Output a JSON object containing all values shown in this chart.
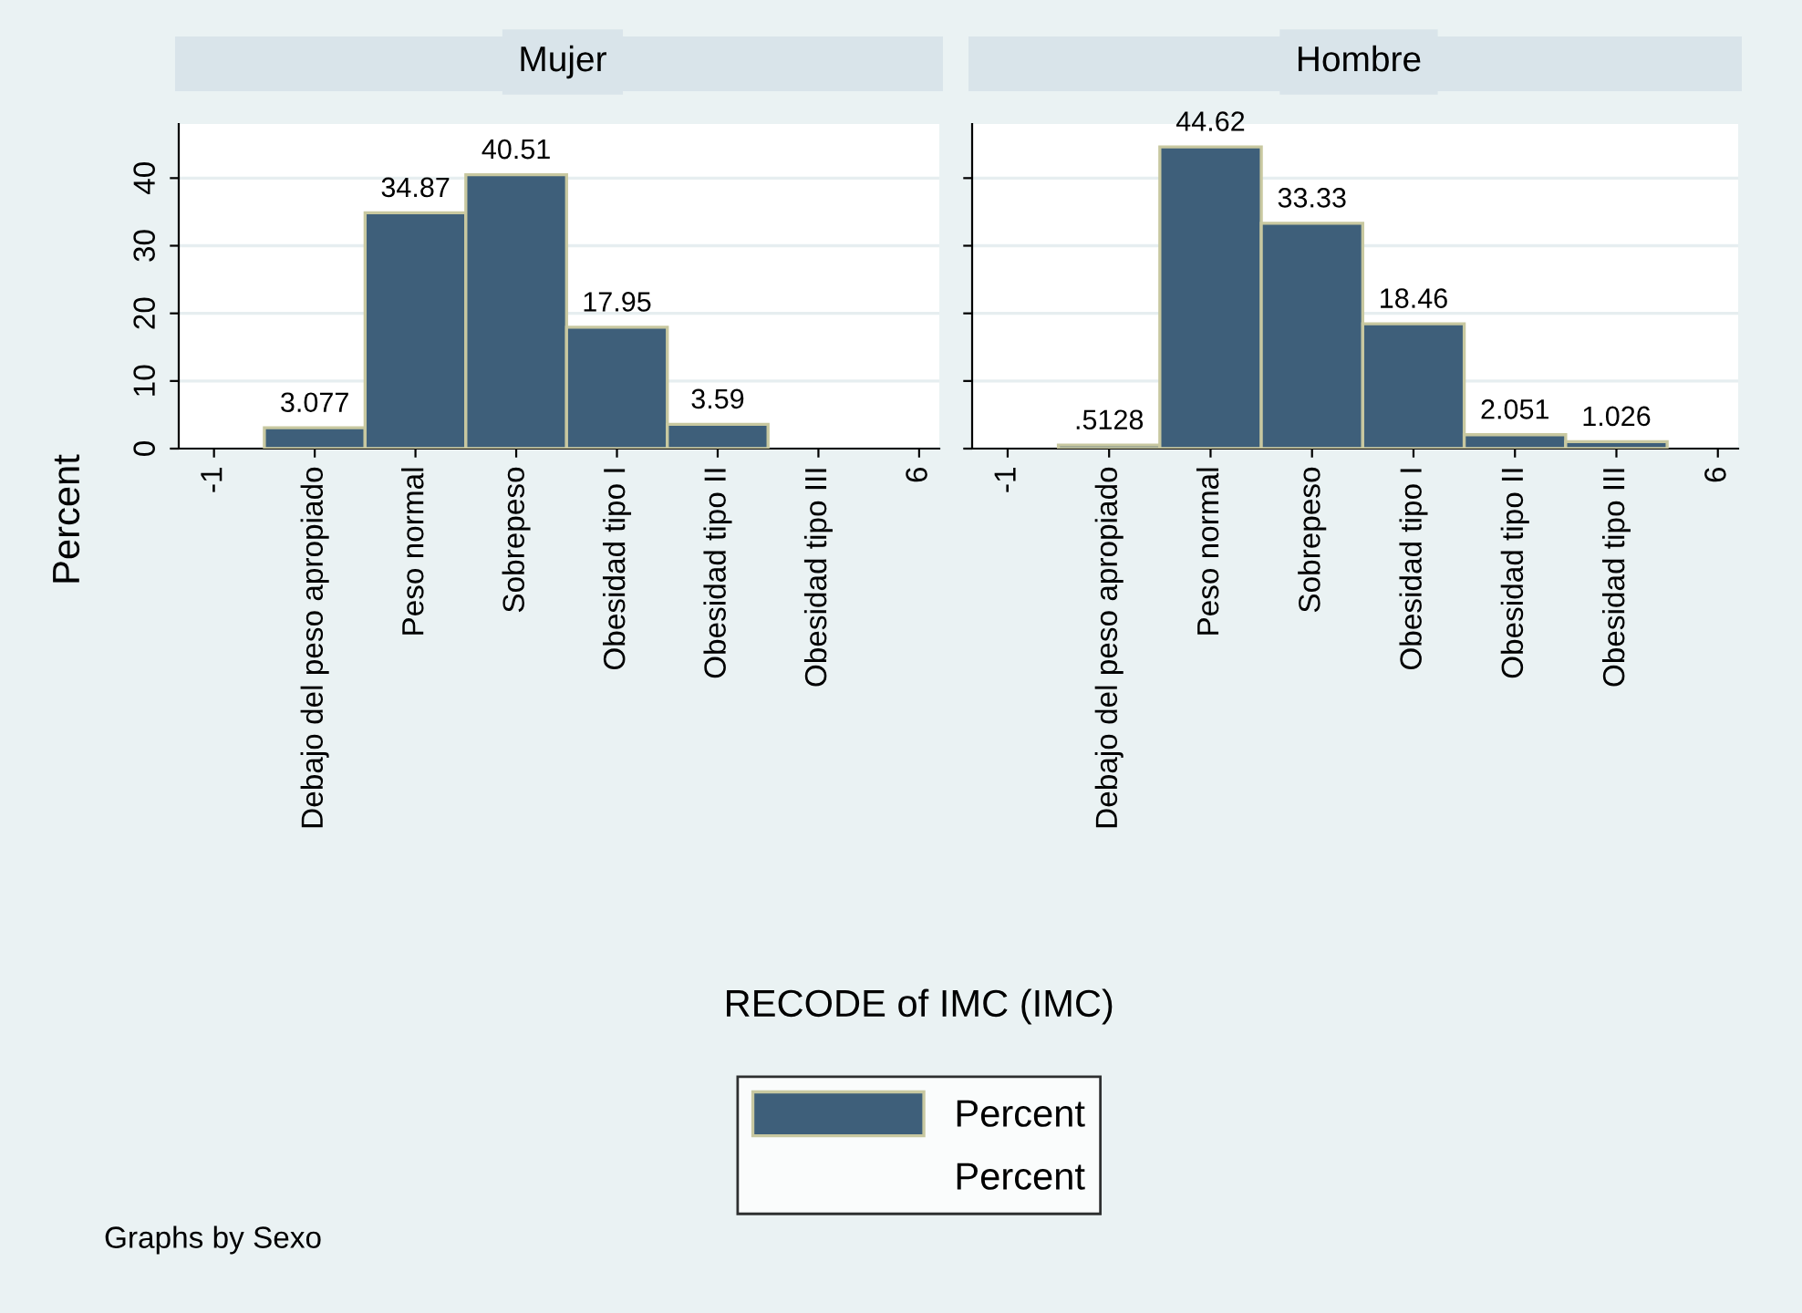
{
  "chart_data": [
    {
      "type": "histogram",
      "title": "Mujer",
      "ylabel": "Percent",
      "xlabel": "RECODE of IMC (IMC)",
      "annotations": [
        "Graphs by Sexo",
        "Percent"
      ],
      "bins": [
        -0.5,
        0.5,
        1.5,
        2.5,
        3.5,
        4.5,
        5.5
      ],
      "series": [
        {
          "name": "Percent",
          "color": "#3e5f7a",
          "values": [
            3.077,
            34.87,
            40.51,
            17.95,
            3.59,
            null
          ],
          "value_labels": [
            "3.077",
            "34.87",
            "40.51",
            "17.95",
            "3.59",
            null
          ]
        }
      ],
      "xlim": [
        -1.35,
        6.2
      ],
      "xticks": [
        -1,
        {
          "value": 0,
          "label": "Debajo del peso apropiado"
        },
        {
          "value": 1,
          "label": "Peso normal"
        },
        {
          "value": 2,
          "label": "Sobrepeso"
        },
        {
          "value": 3,
          "label": "Obesidad tipo I"
        },
        {
          "value": 4,
          "label": "Obesidad tipo II"
        },
        {
          "value": 5,
          "label": "Obesidad tipo III"
        },
        6
      ],
      "ylim": [
        0,
        48
      ],
      "yticks": [
        0,
        10,
        20,
        30,
        40
      ],
      "grid": "y",
      "legend": "bottom"
    },
    {
      "type": "histogram",
      "title": "Hombre",
      "bins": [
        -0.5,
        0.5,
        1.5,
        2.5,
        3.5,
        4.5,
        5.5
      ],
      "series": [
        {
          "color": "#3e5f7a",
          "values": [
            0.5128,
            44.62,
            33.33,
            18.46,
            2.051,
            1.026
          ],
          "value_labels": [
            ".5128",
            "44.62",
            "33.33",
            "18.46",
            "2.051",
            "1.026"
          ]
        }
      ],
      "xlim": [
        -1.35,
        6.2
      ],
      "xticks": [
        -1,
        {
          "value": 0,
          "label": "Debajo del peso apropiado"
        },
        {
          "value": 1,
          "label": "Peso normal"
        },
        {
          "value": 2,
          "label": "Sobrepeso"
        },
        {
          "value": 3,
          "label": "Obesidad tipo I"
        },
        {
          "value": 4,
          "label": "Obesidad tipo II"
        },
        {
          "value": 5,
          "label": "Obesidad tipo III"
        },
        6
      ],
      "ylim": [
        0,
        48
      ],
      "yticks": [
        0,
        10,
        20,
        30,
        40
      ],
      "grid": "y",
      "tick_labels": "x"
    }
  ]
}
